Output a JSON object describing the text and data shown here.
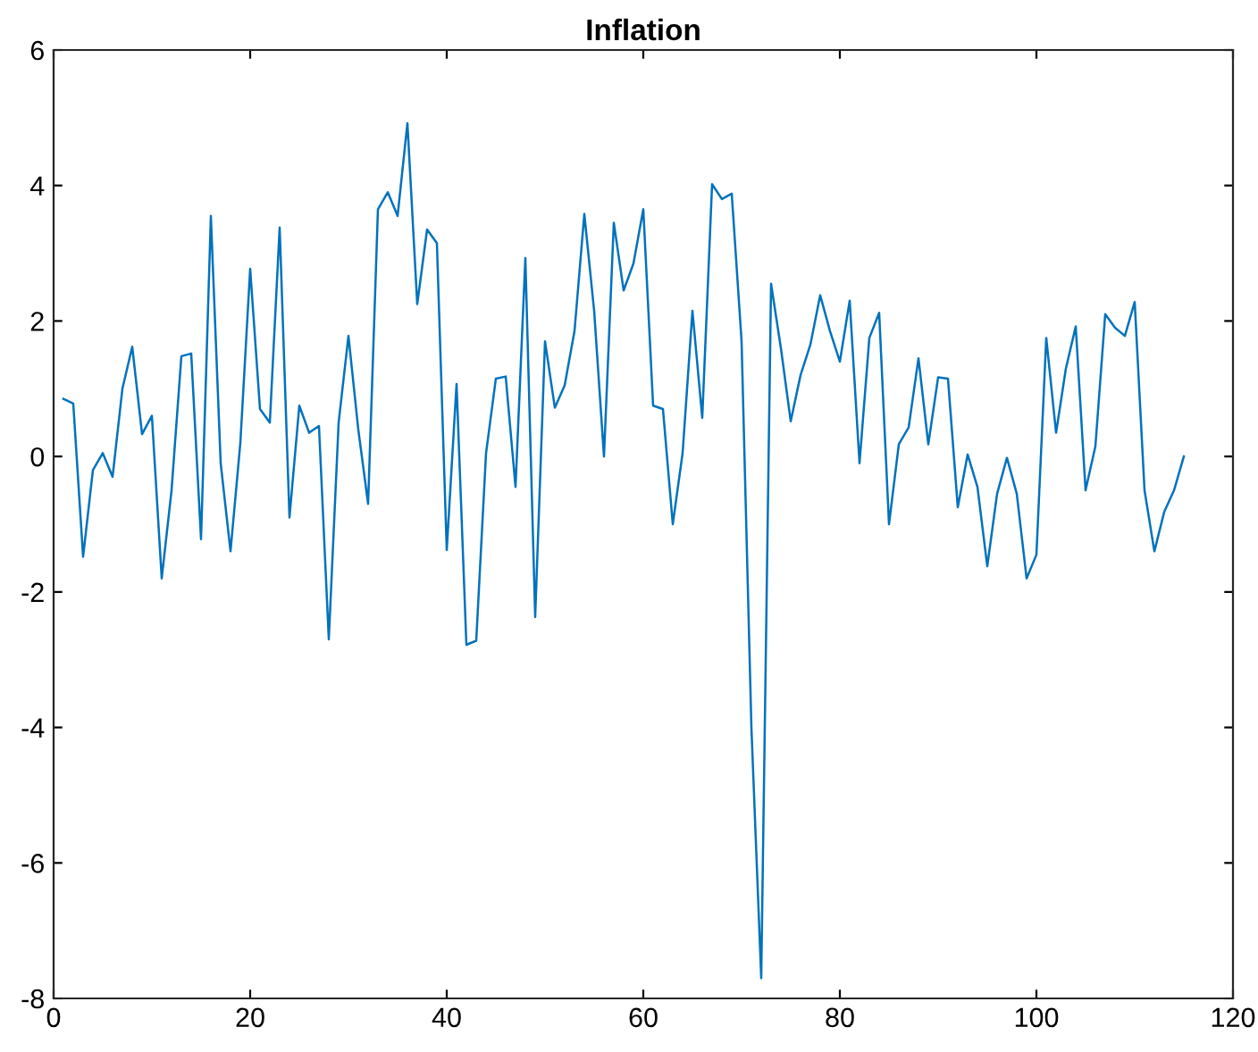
{
  "chart_data": {
    "type": "line",
    "title": "Inflation",
    "x": [
      1,
      2,
      3,
      4,
      5,
      6,
      7,
      8,
      9,
      10,
      11,
      12,
      13,
      14,
      15,
      16,
      17,
      18,
      19,
      20,
      21,
      22,
      23,
      24,
      25,
      26,
      27,
      28,
      29,
      30,
      31,
      32,
      33,
      34,
      35,
      36,
      37,
      38,
      39,
      40,
      41,
      42,
      43,
      44,
      45,
      46,
      47,
      48,
      49,
      50,
      51,
      52,
      53,
      54,
      55,
      56,
      57,
      58,
      59,
      60,
      61,
      62,
      63,
      64,
      65,
      66,
      67,
      68,
      69,
      70,
      71,
      72,
      73,
      74,
      75,
      76,
      77,
      78,
      79,
      80,
      81,
      82,
      83,
      84,
      85,
      86,
      87,
      88,
      89,
      90,
      91,
      92,
      93,
      94,
      95,
      96,
      97,
      98,
      99,
      100,
      101,
      102,
      103,
      104,
      105,
      106,
      107,
      108,
      109,
      110,
      111,
      112,
      113,
      114,
      115
    ],
    "series": [
      {
        "color": "#0072bd",
        "values": [
          0.85,
          0.78,
          -1.48,
          -0.2,
          0.05,
          -0.3,
          1.0,
          1.62,
          0.33,
          0.6,
          -1.8,
          -0.5,
          1.48,
          1.52,
          -1.22,
          3.55,
          -0.1,
          -1.4,
          0.2,
          2.77,
          0.7,
          0.5,
          3.38,
          -0.9,
          0.75,
          0.35,
          0.45,
          -2.7,
          0.5,
          1.78,
          0.4,
          -0.7,
          3.65,
          3.9,
          3.55,
          4.92,
          2.25,
          3.35,
          3.15,
          -1.38,
          1.07,
          -2.78,
          -2.72,
          0.05,
          1.15,
          1.18,
          -0.45,
          2.93,
          -2.37,
          1.7,
          0.72,
          1.05,
          1.85,
          3.58,
          2.15,
          0.0,
          3.45,
          2.45,
          2.85,
          3.65,
          0.75,
          0.7,
          -1.0,
          0.05,
          2.15,
          0.57,
          4.02,
          3.8,
          3.88,
          1.7,
          -4.0,
          -7.7,
          2.55,
          1.6,
          0.52,
          1.2,
          1.65,
          2.38,
          1.85,
          1.4,
          2.3,
          -0.1,
          1.75,
          2.12,
          -1.0,
          0.18,
          0.43,
          1.45,
          0.18,
          1.17,
          1.15,
          -0.75,
          0.03,
          -0.45,
          -1.62,
          -0.55,
          -0.02,
          -0.55,
          -1.8,
          -1.45,
          1.75,
          0.35,
          1.3,
          1.92,
          -0.5,
          0.15,
          2.1,
          1.9,
          1.78,
          2.28,
          -0.5,
          -1.4,
          -0.82,
          -0.5,
          0.0
        ]
      }
    ],
    "xlim": [
      0,
      120
    ],
    "xticks": [
      0,
      20,
      40,
      60,
      80,
      100,
      120
    ],
    "ylim": [
      -8,
      6
    ],
    "yticks": [
      -8,
      -6,
      -4,
      -2,
      0,
      2,
      4,
      6
    ],
    "grid": false,
    "legend": false
  }
}
